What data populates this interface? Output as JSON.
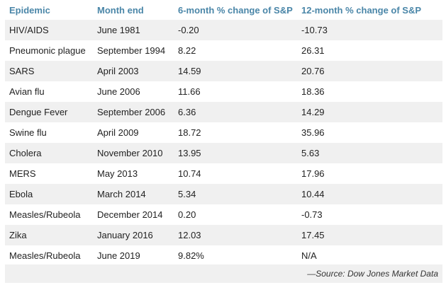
{
  "table": {
    "headers": [
      "Epidemic",
      "Month end",
      "6-month % change of S&P",
      "12-month % change of S&P"
    ],
    "rows": [
      [
        "HIV/AIDS",
        "June 1981",
        "-0.20",
        "-10.73"
      ],
      [
        "Pneumonic plague",
        "September 1994",
        "8.22",
        "26.31"
      ],
      [
        "SARS",
        "April 2003",
        "14.59",
        "20.76"
      ],
      [
        "Avian flu",
        "June 2006",
        "11.66",
        "18.36"
      ],
      [
        "Dengue Fever",
        "September 2006",
        "6.36",
        "14.29"
      ],
      [
        "Swine flu",
        "April 2009",
        "18.72",
        "35.96"
      ],
      [
        "Cholera",
        "November 2010",
        "13.95",
        "5.63"
      ],
      [
        "MERS",
        "May 2013",
        "10.74",
        "17.96"
      ],
      [
        "Ebola",
        "March 2014",
        "5.34",
        "10.44"
      ],
      [
        "Measles/Rubeola",
        "December 2014",
        "0.20",
        "-0.73"
      ],
      [
        "Zika",
        "January 2016",
        "12.03",
        "17.45"
      ],
      [
        "Measles/Rubeola",
        "June 2019",
        "9.82%",
        "N/A"
      ]
    ]
  },
  "source": "—Source: Dow Jones Market Data",
  "colors": {
    "header_text": "#4a86a8",
    "stripe": "#f0f0f0"
  }
}
